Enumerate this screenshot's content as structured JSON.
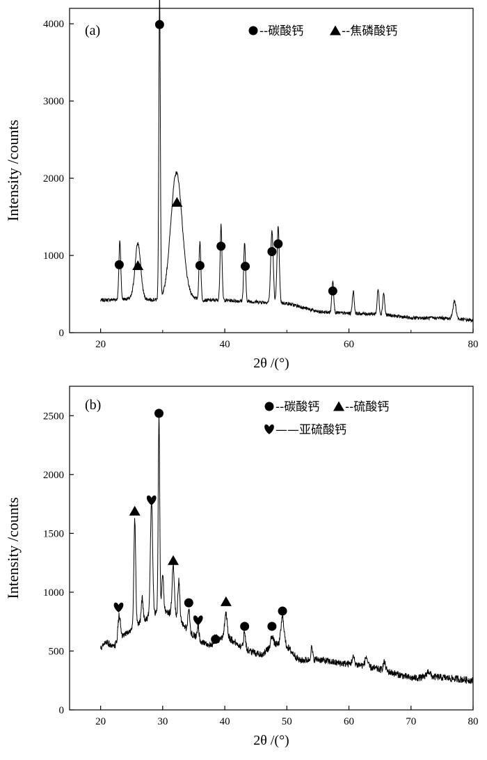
{
  "chart_data": [
    {
      "type": "line",
      "panel_label": "(a)",
      "xlabel": "2θ /(°)",
      "ylabel": "Intensity /counts",
      "xlim": [
        15,
        80
      ],
      "ylim": [
        0,
        4200
      ],
      "xticks": [
        20,
        40,
        60,
        80
      ],
      "yticks": [
        0,
        1000,
        2000,
        3000,
        4000
      ],
      "minor_xticks": [
        30,
        50,
        70
      ],
      "grid": false,
      "legend_position": "top-right",
      "legend": [
        {
          "marker": "circle",
          "label": "--碳酸钙"
        },
        {
          "marker": "triangle",
          "label": "--焦磷酸钙"
        }
      ],
      "baseline": [
        [
          20,
          420
        ],
        [
          25,
          440
        ],
        [
          28,
          430
        ],
        [
          30,
          420
        ],
        [
          33,
          520
        ],
        [
          36,
          420
        ],
        [
          40,
          420
        ],
        [
          45,
          400
        ],
        [
          50,
          380
        ],
        [
          52,
          340
        ],
        [
          55,
          270
        ],
        [
          60,
          250
        ],
        [
          65,
          240
        ],
        [
          70,
          190
        ],
        [
          75,
          190
        ],
        [
          80,
          160
        ]
      ],
      "peaks": [
        {
          "x": 23.1,
          "y": 760,
          "w": 0.15
        },
        {
          "x": 26.0,
          "y": 720,
          "w": 0.45
        },
        {
          "x": 29.5,
          "y": 3930,
          "w": 0.12
        },
        {
          "x": 32.2,
          "y": 1580,
          "w": 0.9
        },
        {
          "x": 36.0,
          "y": 760,
          "w": 0.15
        },
        {
          "x": 39.4,
          "y": 980,
          "w": 0.15
        },
        {
          "x": 43.2,
          "y": 760,
          "w": 0.15
        },
        {
          "x": 47.6,
          "y": 930,
          "w": 0.2
        },
        {
          "x": 48.6,
          "y": 980,
          "w": 0.18
        },
        {
          "x": 57.4,
          "y": 420,
          "w": 0.15
        },
        {
          "x": 60.7,
          "y": 290,
          "w": 0.15
        },
        {
          "x": 64.7,
          "y": 320,
          "w": 0.15
        },
        {
          "x": 65.6,
          "y": 280,
          "w": 0.15
        },
        {
          "x": 77.0,
          "y": 230,
          "w": 0.25
        }
      ],
      "markers": [
        {
          "x": 23.0,
          "y": 880,
          "shape": "circle"
        },
        {
          "x": 26.0,
          "y": 870,
          "shape": "triangle"
        },
        {
          "x": 29.5,
          "y": 3990,
          "shape": "circle"
        },
        {
          "x": 32.3,
          "y": 1690,
          "shape": "triangle"
        },
        {
          "x": 36.0,
          "y": 870,
          "shape": "circle"
        },
        {
          "x": 39.4,
          "y": 1120,
          "shape": "circle"
        },
        {
          "x": 43.3,
          "y": 860,
          "shape": "circle"
        },
        {
          "x": 47.6,
          "y": 1050,
          "shape": "circle"
        },
        {
          "x": 48.6,
          "y": 1150,
          "shape": "circle"
        },
        {
          "x": 57.4,
          "y": 540,
          "shape": "circle"
        }
      ]
    },
    {
      "type": "line",
      "panel_label": "(b)",
      "xlabel": "2θ /(°)",
      "ylabel": "Intensity /counts",
      "xlim": [
        15,
        80
      ],
      "ylim": [
        0,
        2750
      ],
      "xticks": [
        20,
        30,
        40,
        50,
        60,
        70,
        80
      ],
      "yticks": [
        0,
        500,
        1000,
        1500,
        2000,
        2500
      ],
      "grid": false,
      "legend_position": "top-right",
      "legend": [
        {
          "marker": "circle",
          "label": "--碳酸钙"
        },
        {
          "marker": "triangle",
          "label": "--硫酸钙"
        },
        {
          "marker": "heart",
          "label": "——亚硫酸钙"
        }
      ],
      "baseline": [
        [
          20,
          520
        ],
        [
          21,
          580
        ],
        [
          22,
          530
        ],
        [
          24,
          640
        ],
        [
          26,
          720
        ],
        [
          28,
          800
        ],
        [
          30,
          850
        ],
        [
          32,
          800
        ],
        [
          34,
          680
        ],
        [
          36,
          590
        ],
        [
          38,
          540
        ],
        [
          40,
          640
        ],
        [
          42,
          560
        ],
        [
          44,
          500
        ],
        [
          46,
          470
        ],
        [
          48,
          560
        ],
        [
          50,
          540
        ],
        [
          52,
          420
        ],
        [
          55,
          430
        ],
        [
          58,
          400
        ],
        [
          62,
          380
        ],
        [
          66,
          330
        ],
        [
          70,
          270
        ],
        [
          74,
          280
        ],
        [
          80,
          250
        ]
      ],
      "peaks": [
        {
          "x": 23.0,
          "y": 220,
          "w": 0.2
        },
        {
          "x": 25.5,
          "y": 920,
          "w": 0.15
        },
        {
          "x": 26.7,
          "y": 200,
          "w": 0.15
        },
        {
          "x": 28.2,
          "y": 970,
          "w": 0.18
        },
        {
          "x": 29.4,
          "y": 1650,
          "w": 0.12
        },
        {
          "x": 30.0,
          "y": 300,
          "w": 0.15
        },
        {
          "x": 31.7,
          "y": 420,
          "w": 0.18
        },
        {
          "x": 32.6,
          "y": 340,
          "w": 0.15
        },
        {
          "x": 34.2,
          "y": 180,
          "w": 0.15
        },
        {
          "x": 35.7,
          "y": 110,
          "w": 0.15
        },
        {
          "x": 38.5,
          "y": 60,
          "w": 0.2
        },
        {
          "x": 40.2,
          "y": 190,
          "w": 0.2
        },
        {
          "x": 43.2,
          "y": 150,
          "w": 0.15
        },
        {
          "x": 47.6,
          "y": 90,
          "w": 0.2
        },
        {
          "x": 49.3,
          "y": 240,
          "w": 0.25
        },
        {
          "x": 54.0,
          "y": 100,
          "w": 0.15
        },
        {
          "x": 60.7,
          "y": 60,
          "w": 0.2
        },
        {
          "x": 62.8,
          "y": 80,
          "w": 0.2
        },
        {
          "x": 65.7,
          "y": 70,
          "w": 0.2
        },
        {
          "x": 72.8,
          "y": 50,
          "w": 0.3
        }
      ],
      "markers": [
        {
          "x": 22.9,
          "y": 870,
          "shape": "heart"
        },
        {
          "x": 25.5,
          "y": 1690,
          "shape": "triangle"
        },
        {
          "x": 28.2,
          "y": 1780,
          "shape": "heart"
        },
        {
          "x": 29.4,
          "y": 2520,
          "shape": "circle"
        },
        {
          "x": 31.7,
          "y": 1270,
          "shape": "triangle"
        },
        {
          "x": 34.2,
          "y": 910,
          "shape": "circle"
        },
        {
          "x": 35.7,
          "y": 760,
          "shape": "heart"
        },
        {
          "x": 38.5,
          "y": 600,
          "shape": "circle"
        },
        {
          "x": 40.2,
          "y": 920,
          "shape": "triangle"
        },
        {
          "x": 43.2,
          "y": 710,
          "shape": "circle"
        },
        {
          "x": 47.6,
          "y": 710,
          "shape": "circle"
        },
        {
          "x": 49.3,
          "y": 840,
          "shape": "circle"
        }
      ]
    }
  ]
}
